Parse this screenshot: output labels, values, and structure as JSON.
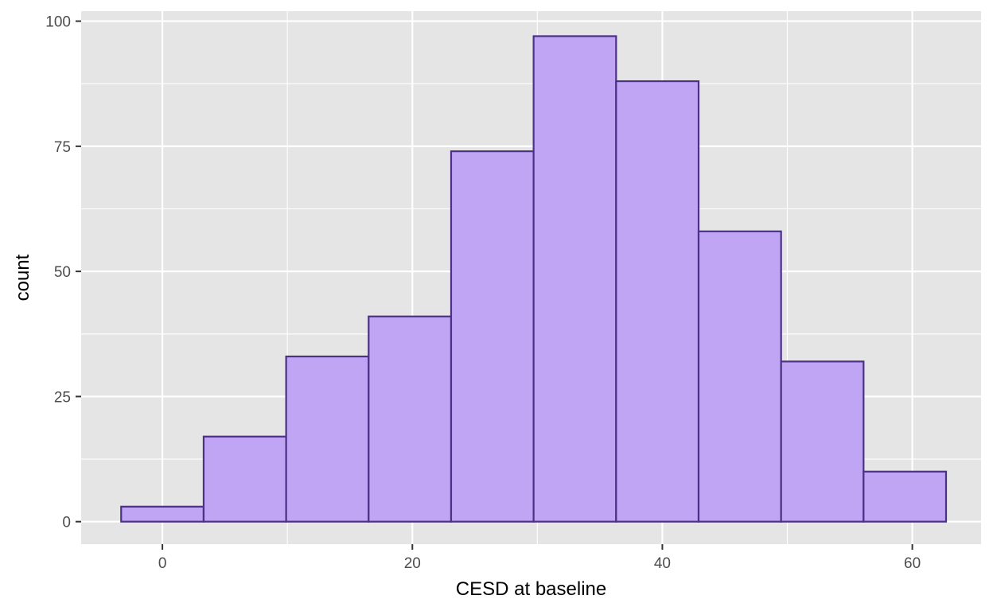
{
  "chart_data": {
    "type": "bar",
    "subtype": "histogram",
    "title": "",
    "xlabel": "CESD at baseline",
    "ylabel": "count",
    "xlim": [
      -6.5,
      65.5
    ],
    "ylim": [
      -4.5,
      102
    ],
    "xticks": [
      0,
      20,
      40,
      60
    ],
    "yticks": [
      0,
      25,
      50,
      75,
      100
    ],
    "bins": [
      {
        "x0": -3.3,
        "x1": 3.3,
        "count": 3
      },
      {
        "x0": 3.3,
        "x1": 9.9,
        "count": 17
      },
      {
        "x0": 9.9,
        "x1": 16.5,
        "count": 33
      },
      {
        "x0": 16.5,
        "x1": 23.1,
        "count": 41
      },
      {
        "x0": 23.1,
        "x1": 29.7,
        "count": 74
      },
      {
        "x0": 29.7,
        "x1": 36.3,
        "count": 97
      },
      {
        "x0": 36.3,
        "x1": 42.9,
        "count": 88
      },
      {
        "x0": 42.9,
        "x1": 49.5,
        "count": 58
      },
      {
        "x0": 49.5,
        "x1": 56.1,
        "count": 32
      },
      {
        "x0": 56.1,
        "x1": 62.7,
        "count": 10
      }
    ],
    "grid": true,
    "legend": "none",
    "colors": {
      "panel_background": "#e5e5e5",
      "grid": "#ffffff",
      "bar_fill": "#bfa5f3",
      "bar_stroke": "#4b3286",
      "tick_label": "#4d4d4d",
      "axis_title": "#000000"
    }
  }
}
